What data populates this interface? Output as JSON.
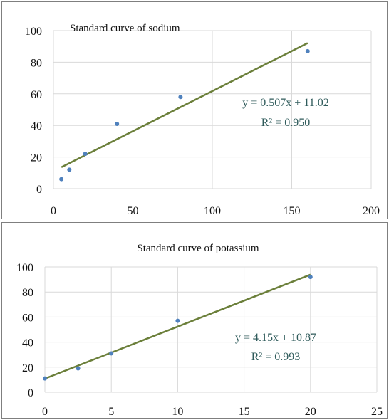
{
  "chart_data": [
    {
      "type": "scatter",
      "title": "Standard curve of sodium",
      "xlabel": "",
      "ylabel": "",
      "xlim": [
        0,
        200
      ],
      "ylim": [
        0,
        100
      ],
      "xticks": [
        "0",
        "50",
        "100",
        "150",
        "200"
      ],
      "yticks": [
        "0",
        "20",
        "40",
        "60",
        "80",
        "100"
      ],
      "grid": true,
      "series": [
        {
          "x": [
            5,
            10,
            20,
            40,
            80,
            160
          ],
          "y": [
            6,
            12,
            22,
            41,
            58,
            87
          ]
        }
      ],
      "trendline": {
        "slope": 0.507,
        "intercept": 11.02,
        "x_range": [
          5,
          160
        ]
      },
      "equation": "y = 0.507x + 11.02",
      "r_squared": "R² = 0.950",
      "colors": {
        "points": "#4f81bd",
        "trendline": "#6b7f3a",
        "grid": "#d9d9d9"
      }
    },
    {
      "type": "scatter",
      "title": "Standard curve of potassium",
      "xlabel": "",
      "ylabel": "",
      "xlim": [
        0,
        25
      ],
      "ylim": [
        0,
        100
      ],
      "xticks": [
        "0",
        "5",
        "10",
        "15",
        "20",
        "25"
      ],
      "yticks": [
        "0",
        "20",
        "40",
        "60",
        "80",
        "100"
      ],
      "grid": true,
      "series": [
        {
          "x": [
            0,
            2.5,
            5,
            10,
            20
          ],
          "y": [
            11,
            19,
            31,
            57,
            92
          ]
        }
      ],
      "trendline": {
        "slope": 4.15,
        "intercept": 10.87,
        "x_range": [
          0,
          20
        ]
      },
      "equation": "y = 4.15x + 10.87",
      "r_squared": "R² = 0.993",
      "colors": {
        "points": "#4f81bd",
        "trendline": "#6b7f3a",
        "grid": "#d9d9d9"
      }
    }
  ]
}
